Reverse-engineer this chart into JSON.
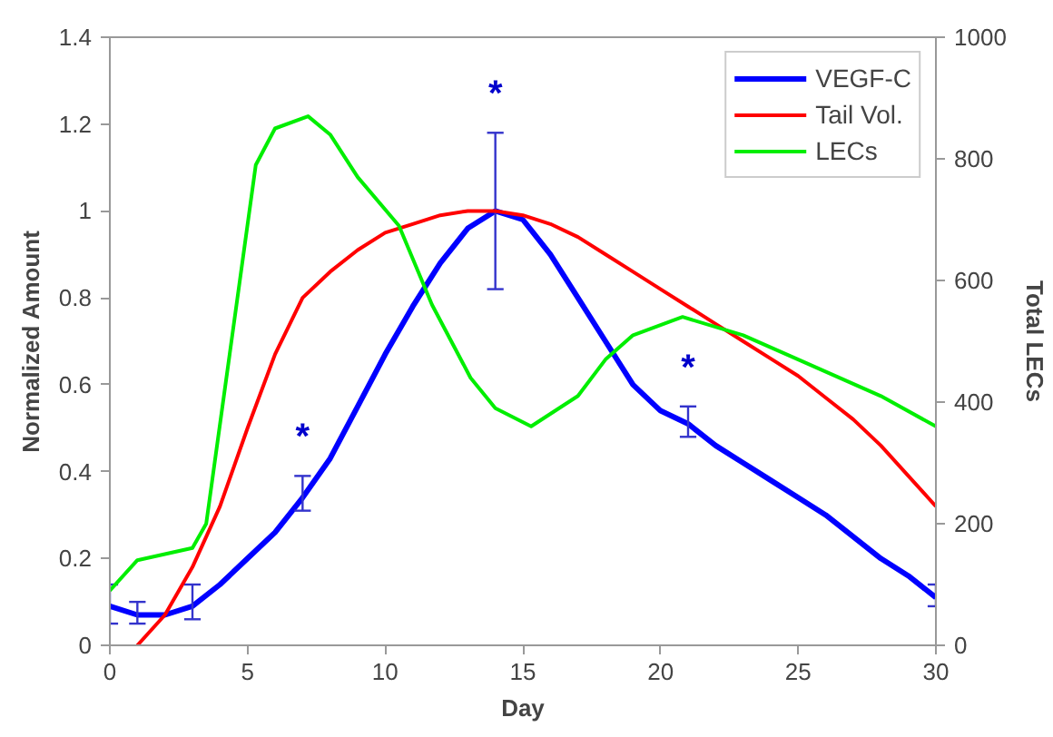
{
  "chart_data": {
    "type": "line",
    "xlabel": "Day",
    "ylabel": "Normalized Amount",
    "y2label": "Total LECs",
    "xlim": [
      0,
      30
    ],
    "xticks": [
      0,
      5,
      10,
      15,
      20,
      25,
      30
    ],
    "ylim": [
      0,
      1.4
    ],
    "yticks": [
      0,
      0.2,
      0.4,
      0.6,
      0.8,
      1,
      1.2,
      1.4
    ],
    "y2lim": [
      0,
      1000
    ],
    "y2ticks": [
      0,
      200,
      400,
      600,
      800,
      1000
    ],
    "grid": false,
    "legend": "top right",
    "marker": "none",
    "line_style": "solid",
    "series": [
      {
        "name": "VEGF-C",
        "color": "#0000ff",
        "x": [
          0,
          1,
          2,
          3,
          4,
          5,
          6,
          7,
          8,
          9,
          10,
          11,
          12,
          13,
          14,
          15,
          16,
          17,
          18,
          19,
          20,
          21,
          22,
          23,
          24,
          25,
          26,
          27,
          28,
          29,
          30
        ],
        "values": [
          0.09,
          0.07,
          0.07,
          0.09,
          0.14,
          0.2,
          0.26,
          0.34,
          0.43,
          0.55,
          0.67,
          0.78,
          0.88,
          0.96,
          1.0,
          0.98,
          0.9,
          0.8,
          0.7,
          0.6,
          0.54,
          0.51,
          0.46,
          0.42,
          0.38,
          0.34,
          0.3,
          0.25,
          0.2,
          0.16,
          0.11
        ],
        "errors": [
          [
            0.05,
            0.14
          ],
          [
            0.05,
            0.1
          ],
          null,
          [
            0.06,
            0.14
          ],
          null,
          null,
          null,
          [
            0.31,
            0.39
          ],
          null,
          null,
          null,
          null,
          null,
          null,
          [
            0.82,
            1.18
          ],
          null,
          null,
          null,
          null,
          null,
          null,
          [
            0.48,
            0.55
          ],
          null,
          null,
          null,
          null,
          null,
          null,
          null,
          null,
          [
            0.09,
            0.14
          ]
        ],
        "value_labels": [
          null,
          null,
          null,
          null,
          null,
          null,
          null,
          "*",
          null,
          null,
          null,
          null,
          null,
          null,
          "*",
          null,
          null,
          null,
          null,
          null,
          null,
          "*",
          null,
          null,
          null,
          null,
          null,
          null,
          null,
          null,
          null
        ]
      },
      {
        "name": "Tail Vol.",
        "color": "#ff0000",
        "x": [
          1,
          2,
          3,
          4,
          5,
          6,
          7,
          8,
          9,
          10,
          11,
          12,
          13,
          14,
          15,
          16,
          17,
          18,
          19,
          20,
          21,
          22,
          23,
          24,
          25,
          26,
          27,
          28,
          29,
          30
        ],
        "values": [
          0,
          0.07,
          0.18,
          0.32,
          0.5,
          0.67,
          0.8,
          0.86,
          0.91,
          0.95,
          0.97,
          0.99,
          1.0,
          1.0,
          0.99,
          0.97,
          0.94,
          0.9,
          0.86,
          0.82,
          0.78,
          0.74,
          0.7,
          0.66,
          0.62,
          0.57,
          0.52,
          0.46,
          0.39,
          0.32
        ]
      },
      {
        "name": "LECs",
        "color": "#00ee00",
        "axis": "y2",
        "x": [
          0,
          1,
          2,
          3,
          3.5,
          4.6,
          5.3,
          6,
          7.2,
          8,
          9,
          10.5,
          11.7,
          13.1,
          14,
          15.3,
          17,
          18,
          19,
          20.8,
          23,
          25,
          28,
          30
        ],
        "values": [
          90,
          140,
          150,
          160,
          200,
          560,
          790,
          850,
          870,
          840,
          770,
          690,
          560,
          440,
          390,
          360,
          410,
          470,
          510,
          540,
          510,
          470,
          410,
          360
        ]
      }
    ]
  }
}
